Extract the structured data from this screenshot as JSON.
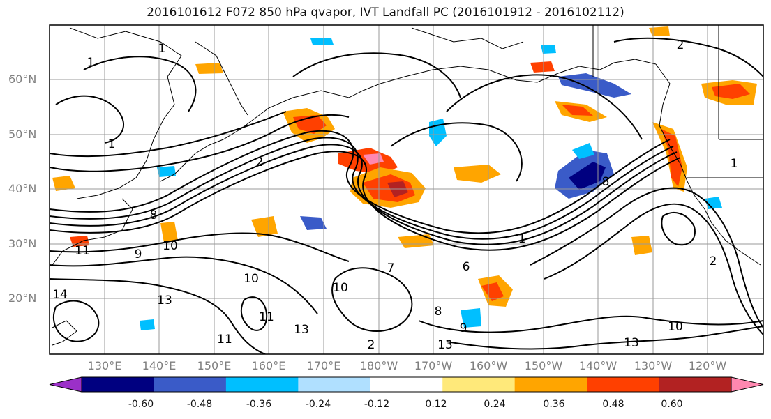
{
  "title": "2016101612 F072 850 hPa qvapor, IVT Landfall PC (2016101912 - 2016102112)",
  "latitude_labels": [
    "60°N",
    "50°N",
    "40°N",
    "30°N",
    "20°N"
  ],
  "longitude_labels": [
    "130°E",
    "140°E",
    "150°E",
    "160°E",
    "170°E",
    "180°W",
    "170°W",
    "160°W",
    "150°W",
    "140°W",
    "130°W",
    "120°W"
  ],
  "contour_labels": [
    "1",
    "2",
    "1",
    "2",
    "1",
    "11",
    "9",
    "10",
    "10",
    "13",
    "11",
    "13",
    "11",
    "14",
    "10",
    "2",
    "8",
    "7",
    "13",
    "13",
    "6",
    "8",
    "9",
    "1",
    "2",
    "8",
    "10",
    "1"
  ],
  "colorbar": {
    "ticks": [
      "-0.60",
      "-0.48",
      "-0.36",
      "-0.24",
      "-0.12",
      "0.12",
      "0.24",
      "0.36",
      "0.48",
      "0.60"
    ],
    "colors": [
      "#9b30c8",
      "#000080",
      "#3a5bc8",
      "#00bfff",
      "#b0e0ff",
      "#ffffff",
      "#ffe97a",
      "#ffa500",
      "#ff4000",
      "#b22222",
      "#ff88b0"
    ]
  }
}
